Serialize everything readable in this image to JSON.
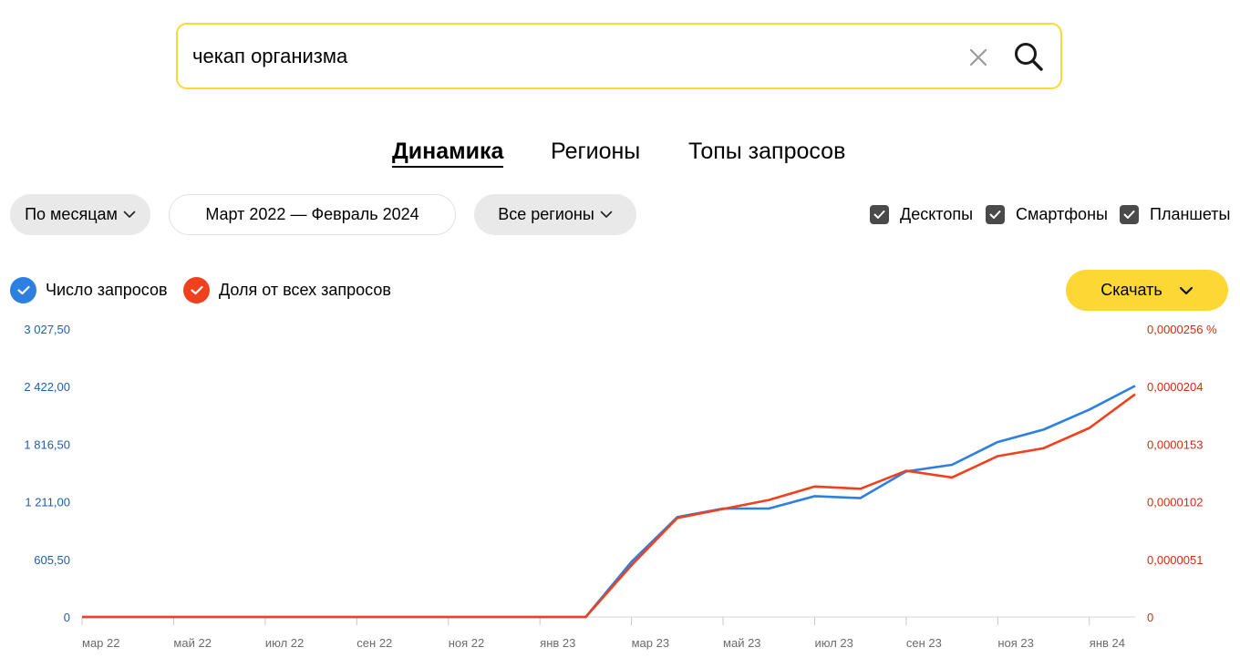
{
  "search": {
    "query": "чекап организма"
  },
  "tabs": [
    {
      "label": "Динамика",
      "active": true
    },
    {
      "label": "Регионы",
      "active": false
    },
    {
      "label": "Топы запросов",
      "active": false
    }
  ],
  "filters": {
    "period_group": "По месяцам",
    "date_range": "Март 2022 — Февраль 2024",
    "region": "Все регионы"
  },
  "devices": [
    {
      "label": "Десктопы",
      "checked": true
    },
    {
      "label": "Смартфоны",
      "checked": true
    },
    {
      "label": "Планшеты",
      "checked": true
    }
  ],
  "legend": {
    "count": {
      "label": "Число запросов",
      "color": "#2d7fe0"
    },
    "share": {
      "label": "Доля от всех запросов",
      "color": "#f0401e"
    }
  },
  "download": {
    "label": "Скачать"
  },
  "colors": {
    "accent_yellow": "#fdd835",
    "left_axis": "#1d5fae",
    "right_axis": "#d52b0f"
  },
  "chart_data": {
    "type": "line",
    "x": [
      "мар 22",
      "апр 22",
      "май 22",
      "июн 22",
      "июл 22",
      "авг 22",
      "сен 22",
      "окт 22",
      "ноя 22",
      "дек 22",
      "янв 23",
      "фев 23",
      "мар 23",
      "апр 23",
      "май 23",
      "июн 23",
      "июл 23",
      "авг 23",
      "сен 23",
      "окт 23",
      "ноя 23",
      "дек 23",
      "янв 24",
      "фев 24"
    ],
    "x_tick_labels": [
      "мар 22",
      "май 22",
      "июл 22",
      "сен 22",
      "ноя 22",
      "янв 23",
      "мар 23",
      "май 23",
      "июл 23",
      "сен 23",
      "ноя 23",
      "янв 24"
    ],
    "y_left_ticks": [
      "0",
      "605,50",
      "1 211,00",
      "1 816,50",
      "2 422,00",
      "3 027,50"
    ],
    "y_right_ticks": [
      "0",
      "0,0000051",
      "0,0000102",
      "0,0000153",
      "0,0000204",
      "0,0000256 %"
    ],
    "y_left_range": [
      0,
      3027.5
    ],
    "y_right_range": [
      0,
      2.56e-05
    ],
    "series": [
      {
        "name": "Число запросов",
        "axis": "left",
        "values": [
          0,
          0,
          0,
          0,
          0,
          0,
          0,
          0,
          0,
          0,
          0,
          0,
          580,
          1050,
          1140,
          1140,
          1270,
          1250,
          1530,
          1600,
          1840,
          1970,
          2180,
          2430
        ]
      },
      {
        "name": "Доля от всех запросов",
        "axis": "right",
        "values": [
          0,
          0,
          0,
          0,
          0,
          0,
          0,
          0,
          0,
          0,
          0,
          0,
          4.6e-06,
          8.8e-06,
          9.6e-06,
          1.04e-05,
          1.16e-05,
          1.14e-05,
          1.3e-05,
          1.24e-05,
          1.43e-05,
          1.5e-05,
          1.68e-05,
          1.98e-05
        ]
      }
    ],
    "grid": false,
    "legend_placement": "top-left"
  }
}
